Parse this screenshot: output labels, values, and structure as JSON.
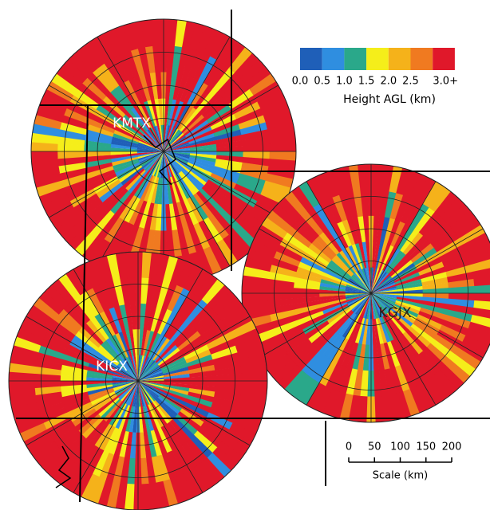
{
  "radars": [
    {
      "label": "KMTX"
    },
    {
      "label": "KGJX"
    },
    {
      "label": "KICX"
    }
  ],
  "legend": {
    "labels": [
      "0.0",
      "0.5",
      "1.0",
      "1.5",
      "2.0",
      "2.5",
      "3.0+"
    ],
    "colors": [
      "#1f5fb8",
      "#2f8ee0",
      "#2aa88a",
      "#f5ee1a",
      "#f5b21a",
      "#f07a20",
      "#e0182a"
    ],
    "title": "Height AGL (km)"
  },
  "scale": {
    "labels": [
      "0",
      "50",
      "100",
      "150",
      "200"
    ],
    "title": "Scale (km)"
  }
}
